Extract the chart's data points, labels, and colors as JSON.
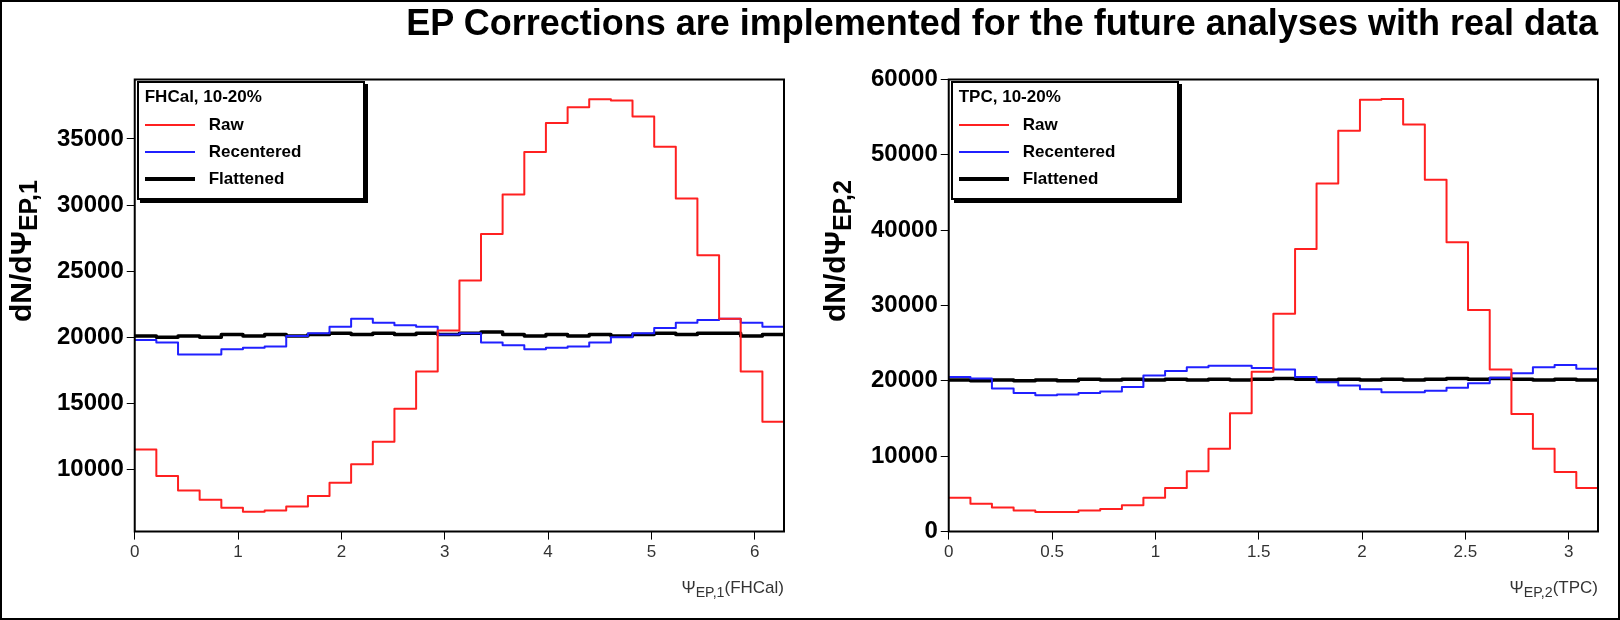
{
  "chart_data": [
    {
      "type": "histogram",
      "title": "EP Corrections are implemented for the future analyses with real data",
      "xlabel": "Ψ$_{EP,1}$(FHCal)",
      "ylabel": "dN/dΨ$_{EP,1}$",
      "legend_title": "FHCal, 10-20%",
      "legend": "top left",
      "xlim": [
        0,
        6.283
      ],
      "xticks": [
        0,
        1,
        2,
        3,
        4,
        5,
        6
      ],
      "ylim": [
        5300,
        39500
      ],
      "yticks": [
        10000,
        15000,
        20000,
        25000,
        30000,
        35000
      ],
      "bins": [
        0,
        0.209,
        0.419,
        0.628,
        0.838,
        1.047,
        1.257,
        1.466,
        1.676,
        1.885,
        2.094,
        2.304,
        2.513,
        2.723,
        2.932,
        3.142,
        3.351,
        3.56,
        3.77,
        3.979,
        4.189,
        4.398,
        4.608,
        4.817,
        5.027,
        5.236,
        5.445,
        5.655,
        5.864,
        6.074,
        6.283
      ],
      "series": [
        {
          "name": "Raw",
          "color": "#ff2020",
          "values": [
            11500,
            9500,
            8400,
            7700,
            7100,
            6800,
            6900,
            7200,
            8000,
            9000,
            10400,
            12100,
            14600,
            17400,
            20500,
            24300,
            27800,
            30800,
            34000,
            36200,
            37400,
            38000,
            37900,
            36700,
            34400,
            30500,
            26200,
            21400,
            17400,
            13600
          ]
        },
        {
          "name": "Recentered",
          "color": "#2020ff",
          "values": [
            19800,
            19600,
            18700,
            18700,
            19100,
            19200,
            19300,
            20100,
            20300,
            20800,
            21400,
            21100,
            20900,
            20800,
            20200,
            20300,
            19600,
            19400,
            19100,
            19200,
            19300,
            19600,
            20000,
            20300,
            20700,
            21100,
            21300,
            21400,
            21100,
            20800
          ]
        },
        {
          "name": "Flattened",
          "color": "#000000",
          "values": [
            20100,
            20000,
            20100,
            20000,
            20200,
            20100,
            20200,
            20100,
            20200,
            20300,
            20200,
            20300,
            20200,
            20300,
            20200,
            20300,
            20400,
            20200,
            20100,
            20200,
            20100,
            20200,
            20100,
            20200,
            20300,
            20200,
            20300,
            20300,
            20100,
            20200
          ]
        }
      ]
    },
    {
      "type": "histogram",
      "xlabel": "Ψ$_{EP,2}$(TPC)",
      "ylabel": "dN/dΨ$_{EP,2}$",
      "legend_title": "TPC, 10-20%",
      "legend": "top left",
      "xlim": [
        0,
        3.142
      ],
      "xticks": [
        0,
        0.5,
        1,
        1.5,
        2,
        2.5,
        3
      ],
      "ylim": [
        0,
        60000
      ],
      "yticks": [
        0,
        10000,
        20000,
        30000,
        40000,
        50000,
        60000
      ],
      "bins": [
        0,
        0.105,
        0.209,
        0.314,
        0.419,
        0.524,
        0.628,
        0.733,
        0.838,
        0.942,
        1.047,
        1.152,
        1.257,
        1.361,
        1.466,
        1.571,
        1.676,
        1.78,
        1.885,
        1.99,
        2.094,
        2.199,
        2.304,
        2.409,
        2.513,
        2.618,
        2.723,
        2.827,
        2.932,
        3.037,
        3.142
      ],
      "series": [
        {
          "name": "Raw",
          "color": "#ff2020",
          "values": [
            4500,
            3700,
            3200,
            2800,
            2600,
            2600,
            2800,
            3000,
            3500,
            4500,
            5800,
            8000,
            11000,
            15700,
            21200,
            28900,
            37500,
            46200,
            53200,
            57300,
            57400,
            54000,
            46700,
            38400,
            29400,
            21500,
            15600,
            11000,
            7900,
            5800
          ]
        },
        {
          "name": "Recentered",
          "color": "#2020ff",
          "values": [
            20500,
            20300,
            19000,
            18400,
            18100,
            18200,
            18400,
            18600,
            19200,
            20700,
            21300,
            21800,
            22000,
            22000,
            21700,
            21500,
            20500,
            19800,
            19400,
            18900,
            18500,
            18500,
            18700,
            19100,
            19700,
            20400,
            21000,
            21800,
            22100,
            21600
          ]
        },
        {
          "name": "Flattened",
          "color": "#000000",
          "values": [
            20100,
            20000,
            20100,
            20000,
            20100,
            20000,
            20200,
            20100,
            20200,
            20100,
            20200,
            20100,
            20200,
            20100,
            20200,
            20300,
            20200,
            20100,
            20200,
            20100,
            20200,
            20100,
            20200,
            20300,
            20200,
            20300,
            20200,
            20100,
            20200,
            20100
          ]
        }
      ]
    }
  ]
}
